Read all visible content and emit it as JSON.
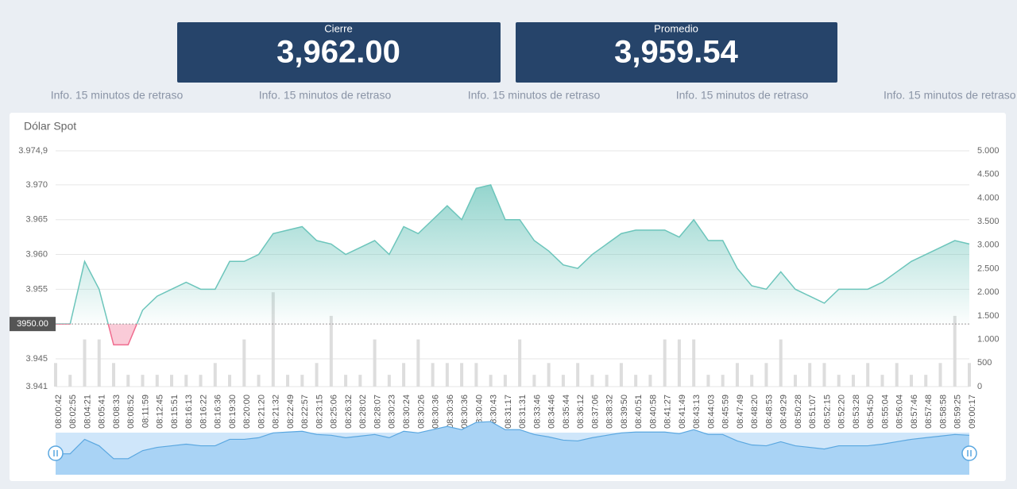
{
  "cards": [
    {
      "label": "Cierre",
      "value": "3,962.00"
    },
    {
      "label": "Promedio",
      "value": "3,959.54"
    }
  ],
  "notices": [
    "Info. 15 minutos de retraso",
    "Info. 15 minutos de retraso",
    "Info. 15 minutos de retraso",
    "Info. 15 minutos de retraso",
    "Info. 15 minutos de retraso"
  ],
  "chart_data": {
    "type": "area",
    "title": "Dólar Spot",
    "categories": [
      "08:00:42",
      "08:02:55",
      "08:04:21",
      "08:05:41",
      "08:08:33",
      "08:08:52",
      "08:11:59",
      "08:12:45",
      "08:15:51",
      "08:16:13",
      "08:16:22",
      "08:16:36",
      "08:19:30",
      "08:20:00",
      "08:21:20",
      "08:21:32",
      "08:22:49",
      "08:22:57",
      "08:23:15",
      "08:25:06",
      "08:26:32",
      "08:28:02",
      "08:28:07",
      "08:30:23",
      "08:30:24",
      "08:30:26",
      "08:30:36",
      "08:30:36",
      "08:30:36",
      "08:30:40",
      "08:30:43",
      "08:31:17",
      "08:31:31",
      "08:33:46",
      "08:34:46",
      "08:35:44",
      "08:36:12",
      "08:37:06",
      "08:38:32",
      "08:39:50",
      "08:40:51",
      "08:40:58",
      "08:41:27",
      "08:41:49",
      "08:43:13",
      "08:44:03",
      "08:45:59",
      "08:47:49",
      "08:48:20",
      "08:48:53",
      "08:49:29",
      "08:50:28",
      "08:51:07",
      "08:52:15",
      "08:52:20",
      "08:53:28",
      "08:54:50",
      "08:55:04",
      "08:56:04",
      "08:57:46",
      "08:57:48",
      "08:58:58",
      "08:59:25",
      "09:00:17"
    ],
    "series": [
      {
        "color": "#6cc5bb",
        "negative_color": "#f06b8e",
        "threshold": 3950,
        "values": [
          3950,
          3950,
          3959,
          3955,
          3947,
          3947,
          3952,
          3954,
          3955,
          3956,
          3955,
          3955,
          3959,
          3959,
          3960,
          3963,
          3963.5,
          3964,
          3962,
          3961.5,
          3960,
          3961,
          3962,
          3960,
          3964,
          3963,
          3965,
          3967,
          3965,
          3969.5,
          3970,
          3965,
          3965,
          3962,
          3960.5,
          3958.5,
          3958,
          3960,
          3961.5,
          3963,
          3963.5,
          3963.5,
          3963.5,
          3962.5,
          3965,
          3962,
          3962,
          3958,
          3955.5,
          3955,
          3957.5,
          3955,
          3954,
          3953,
          3955,
          3955,
          3955,
          3956,
          3957.5,
          3959,
          3960,
          3961,
          3962,
          3961.5
        ]
      },
      {
        "type": "bar",
        "axis": "y2",
        "color": "#dddddd",
        "values": [
          500,
          250,
          1000,
          1000,
          500,
          250,
          250,
          250,
          250,
          250,
          250,
          500,
          250,
          1000,
          250,
          2000,
          250,
          250,
          500,
          1500,
          250,
          250,
          1000,
          250,
          500,
          1000,
          500,
          500,
          500,
          500,
          250,
          250,
          1000,
          250,
          500,
          250,
          500,
          250,
          250,
          500,
          250,
          250,
          1000,
          1000,
          1000,
          250,
          250,
          500,
          250,
          500,
          1000,
          250,
          500,
          500,
          250,
          250,
          500,
          250,
          500,
          250,
          250,
          500,
          1500,
          500
        ]
      }
    ],
    "reference": {
      "value": 3950,
      "label": "3950.00"
    },
    "ylim": [
      3941,
      3974.9
    ],
    "yticks": [
      {
        "value": 3941,
        "label": "3.941"
      },
      {
        "value": 3945,
        "label": "3.945"
      },
      {
        "value": 3955,
        "label": "3.955"
      },
      {
        "value": 3960,
        "label": "3.960"
      },
      {
        "value": 3965,
        "label": "3.965"
      },
      {
        "value": 3970,
        "label": "3.970"
      },
      {
        "value": 3974.9,
        "label": "3.974,9"
      }
    ],
    "y2lim": [
      0,
      5000
    ],
    "y2ticks": [
      0,
      500,
      {
        "value": 1000,
        "label": "1.000"
      },
      {
        "value": 1500,
        "label": "1.500"
      },
      {
        "value": 2000,
        "label": "2.000"
      },
      {
        "value": 2500,
        "label": "2.500"
      },
      {
        "value": 3000,
        "label": "3.000"
      },
      {
        "value": 3500,
        "label": "3.500"
      },
      {
        "value": 4000,
        "label": "4.000"
      },
      {
        "value": 4500,
        "label": "4.500"
      },
      {
        "value": 5000,
        "label": "5.000"
      }
    ],
    "grid": true
  }
}
